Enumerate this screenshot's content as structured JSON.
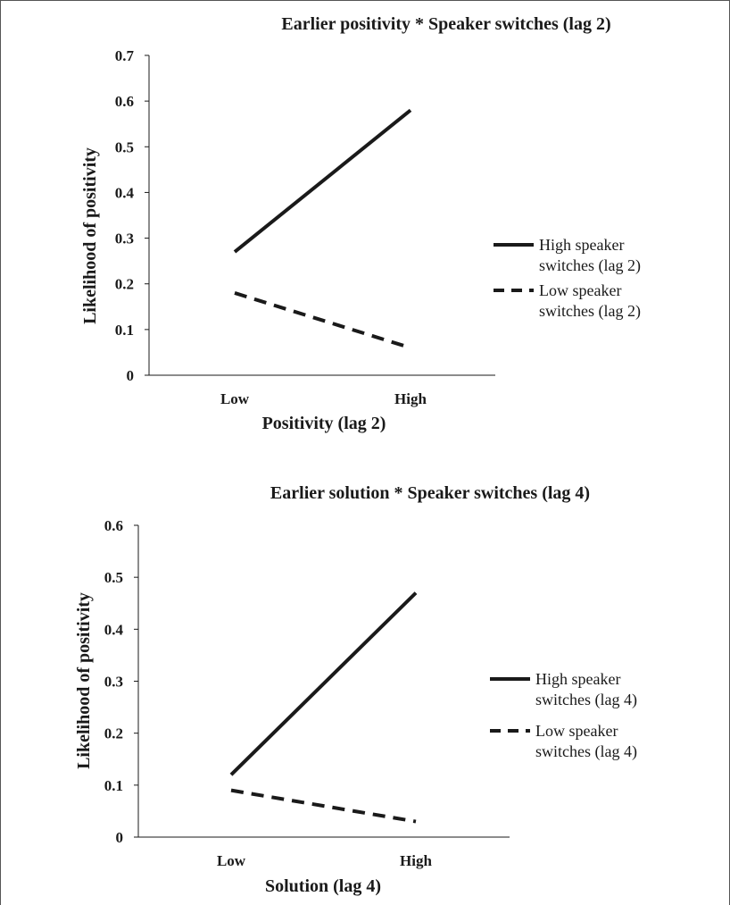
{
  "chart_data": [
    {
      "type": "line",
      "title": "Earlier positivity * Speaker switches (lag 2)",
      "xlabel": "Positivity (lag 2)",
      "ylabel": "Likelihood of positivity",
      "categories": [
        "Low",
        "High"
      ],
      "ylim": [
        0,
        0.7
      ],
      "yticks": [
        "0",
        "0.1",
        "0.2",
        "0.3",
        "0.4",
        "0.5",
        "0.6",
        "0.7"
      ],
      "legend_position": "right",
      "series": [
        {
          "name": "High speaker switches (lag 2)",
          "values": [
            0.27,
            0.58
          ],
          "style": "solid"
        },
        {
          "name": "Low speaker switches (lag 2)",
          "values": [
            0.18,
            0.06
          ],
          "style": "dashed"
        }
      ]
    },
    {
      "type": "line",
      "title": "Earlier solution * Speaker switches (lag 4)",
      "xlabel": "Solution (lag 4)",
      "ylabel": "Likelihood of positivity",
      "categories": [
        "Low",
        "High"
      ],
      "ylim": [
        0,
        0.6
      ],
      "yticks": [
        "0",
        "0.1",
        "0.2",
        "0.3",
        "0.4",
        "0.5",
        "0.6"
      ],
      "legend_position": "right",
      "series": [
        {
          "name": "High speaker switches (lag 4)",
          "values": [
            0.12,
            0.47
          ],
          "style": "solid"
        },
        {
          "name": "Low speaker switches (lag 4)",
          "values": [
            0.09,
            0.03
          ],
          "style": "dashed"
        }
      ]
    }
  ],
  "legend_lines": [
    [
      [
        "High speaker",
        "switches (lag 2)"
      ],
      [
        "Low speaker",
        "switches (lag 2)"
      ]
    ],
    [
      [
        "High speaker",
        "switches (lag 4)"
      ],
      [
        "Low speaker",
        "switches (lag 4)"
      ]
    ]
  ],
  "colors": {
    "ink": "#1a1a1a",
    "frame": "#555555"
  }
}
